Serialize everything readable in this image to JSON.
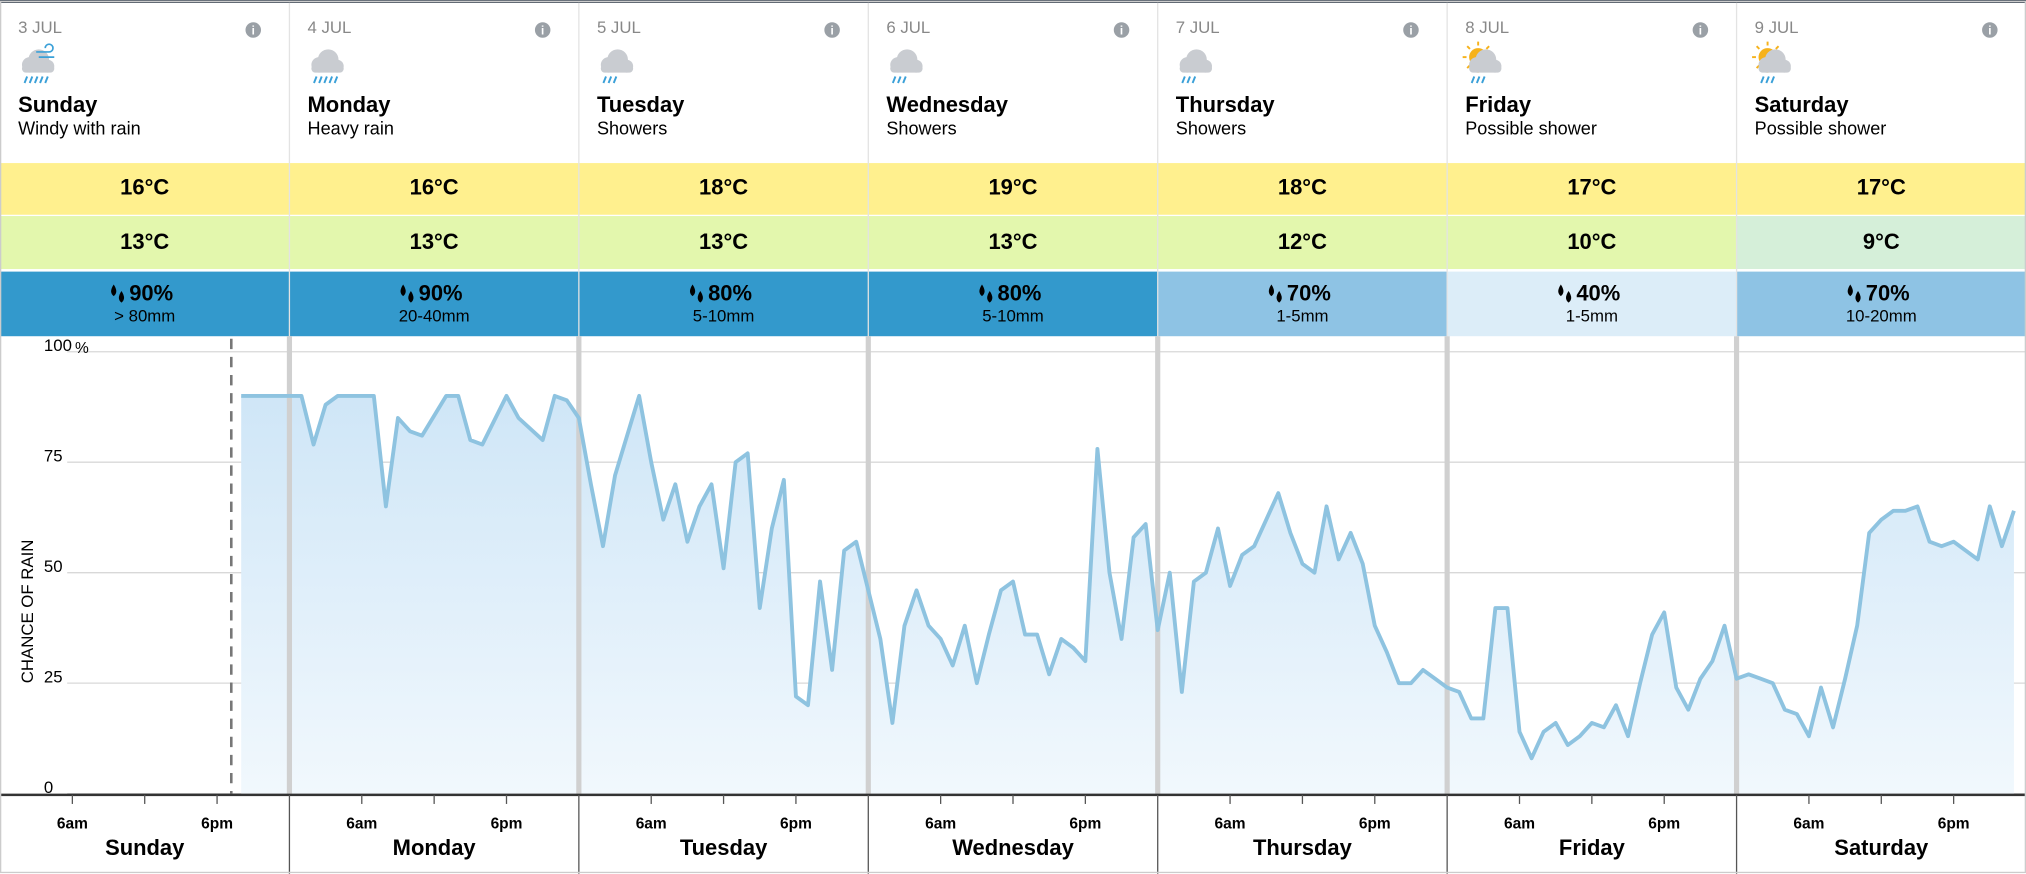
{
  "days": [
    {
      "date": "3 JUL",
      "day": "Sunday",
      "description": "Windy with rain",
      "max": "16°C",
      "min": "13°C",
      "rain_chance": "90%",
      "rain_amount": "> 80mm",
      "min_color": "#e3f7ad",
      "rain_color": "#3399cc"
    },
    {
      "date": "4 JUL",
      "day": "Monday",
      "description": "Heavy rain",
      "max": "16°C",
      "min": "13°C",
      "rain_chance": "90%",
      "rain_amount": "20-40mm",
      "min_color": "#e3f7ad",
      "rain_color": "#3399cc"
    },
    {
      "date": "5 JUL",
      "day": "Tuesday",
      "description": "Showers",
      "max": "18°C",
      "min": "13°C",
      "rain_chance": "80%",
      "rain_amount": "5-10mm",
      "min_color": "#e3f7ad",
      "rain_color": "#3399cc"
    },
    {
      "date": "6 JUL",
      "day": "Wednesday",
      "description": "Showers",
      "max": "19°C",
      "min": "13°C",
      "rain_chance": "80%",
      "rain_amount": "5-10mm",
      "min_color": "#e3f7ad",
      "rain_color": "#3399cc"
    },
    {
      "date": "7 JUL",
      "day": "Thursday",
      "description": "Showers",
      "max": "18°C",
      "min": "12°C",
      "rain_chance": "70%",
      "rain_amount": "1-5mm",
      "min_color": "#e3f7ad",
      "rain_color": "#8ec3e4"
    },
    {
      "date": "8 JUL",
      "day": "Friday",
      "description": "Possible shower",
      "max": "17°C",
      "min": "10°C",
      "rain_chance": "40%",
      "rain_amount": "1-5mm",
      "min_color": "#e3f7ad",
      "rain_color": "#dcedf8"
    },
    {
      "date": "9 JUL",
      "day": "Saturday",
      "description": "Possible shower",
      "max": "17°C",
      "min": "9°C",
      "rain_chance": "70%",
      "rain_amount": "10-20mm",
      "min_color": "#d5efd9",
      "rain_color": "#8ec3e4"
    }
  ],
  "max_color": "#fff08e",
  "chart_data": {
    "type": "line",
    "ylabel": "CHANCE OF RAIN",
    "yunit": "%",
    "color": "#8ec3e0",
    "categories": [
      "Sunday",
      "Monday",
      "Tuesday",
      "Wednesday",
      "Thursday",
      "Friday",
      "Saturday"
    ],
    "xlim": [
      0,
      168
    ],
    "xticks": [
      {
        "value": 6,
        "label": "6am"
      },
      {
        "value": 18,
        "label": "6pm"
      },
      {
        "value": 30,
        "label": "6am"
      },
      {
        "value": 42,
        "label": "6pm"
      },
      {
        "value": 54,
        "label": "6am"
      },
      {
        "value": 66,
        "label": "6pm"
      },
      {
        "value": 78,
        "label": "6am"
      },
      {
        "value": 90,
        "label": "6pm"
      },
      {
        "value": 102,
        "label": "6am"
      },
      {
        "value": 114,
        "label": "6pm"
      },
      {
        "value": 126,
        "label": "6am"
      },
      {
        "value": 138,
        "label": "6pm"
      },
      {
        "value": 150,
        "label": "6am"
      },
      {
        "value": 162,
        "label": "6pm"
      }
    ],
    "ylim": [
      0,
      100
    ],
    "yticks": [
      0,
      25,
      50,
      75,
      100
    ],
    "grid": true,
    "x": [
      20,
      25,
      26,
      27,
      28,
      31,
      32,
      33,
      34,
      35,
      37,
      38,
      39,
      40,
      42,
      43,
      45,
      46,
      47,
      48,
      49,
      50,
      51,
      53,
      54,
      55,
      56,
      57,
      58,
      59,
      60,
      61,
      62,
      63,
      64,
      65,
      66,
      67,
      68,
      69,
      70,
      71,
      72,
      73,
      74,
      75,
      76,
      77,
      78,
      79,
      80,
      81,
      82,
      83,
      84,
      85,
      86,
      87,
      88,
      89,
      90,
      91,
      92,
      93,
      94,
      95,
      96,
      97,
      98,
      99,
      100,
      101,
      102,
      103,
      104,
      105,
      106,
      107,
      108,
      109,
      110,
      111,
      112,
      113,
      114,
      115,
      116,
      117,
      118,
      119,
      120,
      121,
      122,
      123,
      124,
      125,
      126,
      127,
      128,
      129,
      130,
      131,
      132,
      133,
      134,
      135,
      136,
      137,
      138,
      139,
      140,
      141,
      142,
      143,
      144,
      145,
      146,
      147,
      148,
      149,
      150,
      151,
      152,
      153,
      154,
      155,
      156,
      157,
      158,
      159,
      160,
      161,
      162,
      163,
      164,
      165,
      166,
      167
    ],
    "values": [
      90,
      90,
      79,
      88,
      90,
      90,
      65,
      85,
      82,
      81,
      90,
      90,
      80,
      79,
      90,
      85,
      80,
      90,
      89,
      85,
      70,
      56,
      72,
      90,
      75,
      62,
      70,
      57,
      65,
      70,
      51,
      75,
      77,
      42,
      60,
      71,
      22,
      20,
      48,
      28,
      55,
      57,
      46,
      35,
      16,
      38,
      46,
      38,
      35,
      29,
      38,
      25,
      36,
      46,
      48,
      36,
      36,
      27,
      35,
      33,
      30,
      78,
      50,
      35,
      58,
      61,
      37,
      50,
      23,
      48,
      50,
      60,
      47,
      54,
      56,
      62,
      68,
      59,
      52,
      50,
      65,
      53,
      59,
      52,
      38,
      32,
      25,
      25,
      28,
      26,
      24,
      23,
      17,
      17,
      42,
      42,
      14,
      8,
      14,
      16,
      11,
      13,
      16,
      15,
      20,
      13,
      25,
      36,
      41,
      24,
      19,
      26,
      30,
      38,
      26,
      27,
      26,
      25,
      19,
      18,
      13,
      24,
      15,
      26,
      38,
      59,
      62,
      64,
      64,
      65,
      57,
      56,
      57,
      55,
      53,
      65,
      56,
      64
    ]
  }
}
